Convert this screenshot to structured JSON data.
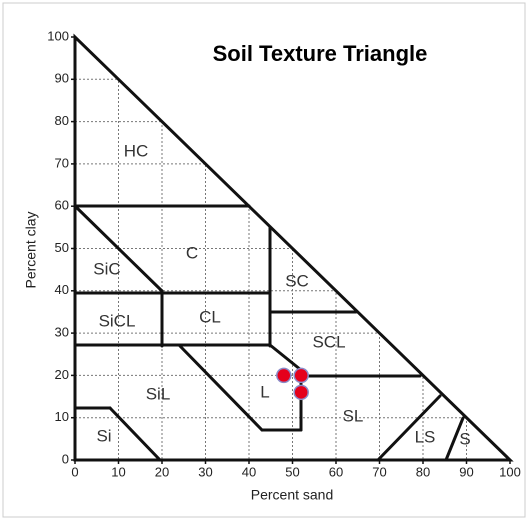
{
  "chart_data": {
    "type": "scatter",
    "title": "Soil Texture Triangle",
    "xlabel": "Percent  sand",
    "ylabel": "Percent clay",
    "x": [
      48,
      52,
      52
    ],
    "values": [
      20,
      20,
      16
    ],
    "color": "#e5001c",
    "xlim": [
      0,
      100
    ],
    "xticks": [
      0,
      10,
      20,
      30,
      40,
      50,
      60,
      70,
      80,
      90,
      100
    ],
    "ylim": [
      0,
      100
    ],
    "yticks": [
      0,
      10,
      20,
      30,
      40,
      50,
      60,
      70,
      80,
      90,
      100
    ],
    "grid": true,
    "annotations": [
      "HC",
      "C",
      "SiC",
      "SC",
      "SiCL",
      "CL",
      "SCL",
      "SiL",
      "L",
      "SL",
      "Si",
      "LS",
      "S"
    ]
  }
}
